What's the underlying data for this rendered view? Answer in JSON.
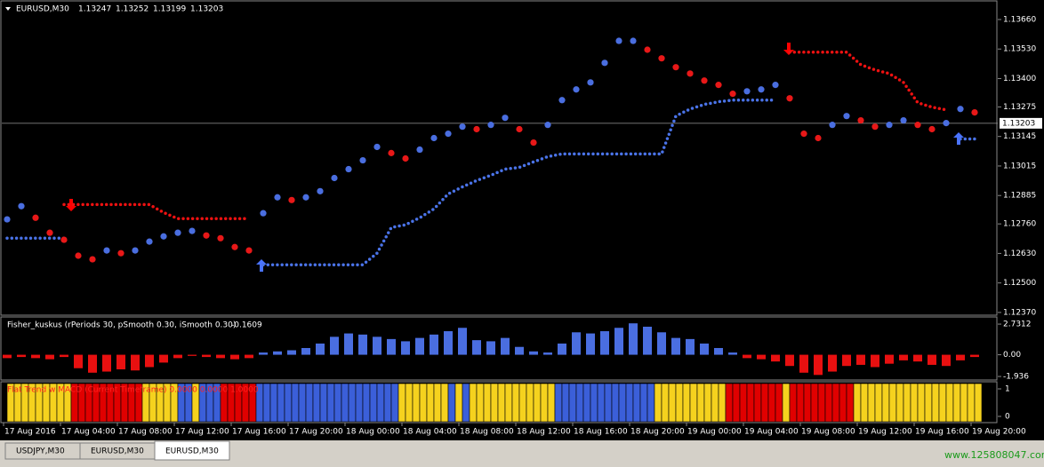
{
  "header": {
    "symbol": "EURUSD,M30",
    "ohlc": [
      1.13247,
      1.13252,
      1.13199,
      1.13203
    ]
  },
  "main_chart": {
    "type": "dot-price",
    "ylim": [
      1.12358,
      1.13742
    ],
    "yticks": [
      {
        "value": 1.1366,
        "label": "1.13660"
      },
      {
        "value": 1.1353,
        "label": "1.13530"
      },
      {
        "value": 1.134,
        "label": "1.13400"
      },
      1.13275,
      1.13145,
      1.13015,
      1.12885,
      {
        "value": 1.1276,
        "label": "1.12760"
      },
      {
        "value": 1.1263,
        "label": "1.12630"
      },
      {
        "value": 1.125,
        "label": "1.12500"
      },
      {
        "value": 1.1237,
        "label": "1.12370"
      }
    ],
    "current_price": 1.13203,
    "close": [
      1.1278,
      1.12838,
      1.12787,
      1.12721,
      1.1269,
      1.1262,
      1.12604,
      1.12643,
      1.12631,
      1.12643,
      1.12682,
      1.12705,
      1.12721,
      1.12729,
      1.12709,
      1.12697,
      1.12658,
      1.12643,
      1.12807,
      1.12877,
      1.12865,
      1.12877,
      1.12904,
      1.12962,
      1.13001,
      1.1304,
      1.13099,
      1.13072,
      1.13048,
      1.13087,
      1.13138,
      1.13157,
      1.13188,
      1.13177,
      1.13196,
      1.13227,
      1.13177,
      1.13118,
      1.13196,
      1.13305,
      1.13352,
      1.13383,
      1.13469,
      1.13566,
      1.13566,
      1.13527,
      1.13489,
      1.1345,
      1.13422,
      1.13391,
      1.13372,
      1.13333,
      1.13344,
      1.13352,
      1.13372,
      1.13313,
      1.13157,
      1.13138,
      1.13196,
      1.13235,
      1.13216,
      1.13188,
      1.13196,
      1.13216,
      1.13196,
      1.13177,
      1.13204,
      1.13266,
      1.13251
    ],
    "support": [
      1.12697,
      1.12697,
      1.12697,
      1.12697,
      1.12697,
      null,
      null,
      null,
      null,
      null,
      null,
      null,
      null,
      null,
      null,
      null,
      null,
      null,
      1.1258,
      1.1258,
      1.1258,
      1.1258,
      1.1258,
      1.1258,
      1.1258,
      1.1258,
      1.12631,
      1.12744,
      1.12756,
      1.12787,
      1.12826,
      1.12892,
      1.12923,
      1.12951,
      1.12974,
      1.13001,
      1.13009,
      1.13033,
      1.13056,
      1.13068,
      1.13068,
      1.13068,
      1.13068,
      1.13068,
      1.13068,
      1.13068,
      1.13068,
      1.13235,
      1.13266,
      1.13286,
      1.13298,
      1.13305,
      1.13305,
      1.13305,
      1.13305,
      null,
      null,
      null,
      null,
      null,
      null,
      null,
      null,
      null,
      null,
      null,
      null,
      1.13134,
      1.13134
    ],
    "resistance": [
      null,
      null,
      null,
      null,
      1.12845,
      1.12845,
      1.12845,
      1.12845,
      1.12845,
      1.12845,
      1.12845,
      1.1281,
      1.12783,
      1.12783,
      1.12783,
      1.12783,
      1.12783,
      1.12783,
      null,
      null,
      null,
      null,
      null,
      null,
      null,
      null,
      null,
      null,
      null,
      null,
      null,
      null,
      null,
      null,
      null,
      null,
      null,
      null,
      null,
      null,
      null,
      null,
      null,
      null,
      null,
      null,
      null,
      null,
      null,
      null,
      null,
      null,
      null,
      null,
      null,
      1.13516,
      1.13516,
      1.13516,
      1.13516,
      1.13516,
      1.13461,
      1.13438,
      1.13422,
      1.13383,
      1.13294,
      1.13274,
      1.13262,
      null,
      null
    ]
  },
  "fisher": {
    "type": "histogram",
    "label": "Fisher_kuskus (rPeriods 30, pSmooth 0.30, iSmooth 0.30)",
    "current": -0.1609,
    "ylim": [
      -2.25,
      3.29
    ],
    "yticks": [
      2.7312,
      {
        "value": 0,
        "label": "0.00"
      },
      -1.936
    ],
    "values": [
      -0.3,
      -0.2,
      -0.3,
      -0.4,
      -0.2,
      -1.2,
      -1.6,
      -1.5,
      -1.3,
      -1.4,
      -1.1,
      -0.7,
      -0.3,
      -0.1,
      -0.2,
      -0.3,
      -0.4,
      -0.3,
      0.2,
      0.3,
      0.4,
      0.6,
      1.0,
      1.6,
      1.9,
      1.8,
      1.6,
      1.4,
      1.2,
      1.5,
      1.8,
      2.1,
      2.4,
      1.3,
      1.2,
      1.5,
      0.7,
      0.3,
      0.2,
      1.0,
      2.0,
      1.9,
      2.1,
      2.4,
      2.8,
      2.5,
      2.0,
      1.5,
      1.4,
      1.0,
      0.6,
      0.2,
      -0.3,
      -0.4,
      -0.6,
      -1.0,
      -1.6,
      -1.8,
      -1.5,
      -1.0,
      -0.9,
      -1.1,
      -0.8,
      -0.5,
      -0.6,
      -0.9,
      -1.0,
      -0.5,
      -0.2
    ]
  },
  "trend": {
    "type": "blocks",
    "label": "Flat Trend w MACD (Current Timeframe) 0.0000 0.0000 1.0000",
    "yticks": [
      1,
      0
    ],
    "segments": [
      {
        "color": "#f5d21e",
        "bars": 9
      },
      {
        "color": "#e00000",
        "bars": 10
      },
      {
        "color": "#f5d21e",
        "bars": 5
      },
      {
        "color": "#3b5fd9",
        "bars": 2
      },
      {
        "color": "#f5d21e",
        "bars": 1
      },
      {
        "color": "#3b5fd9",
        "bars": 3
      },
      {
        "color": "#e00000",
        "bars": 5
      },
      {
        "color": "#3b5fd9",
        "bars": 20
      },
      {
        "color": "#f5d21e",
        "bars": 7
      },
      {
        "color": "#3b5fd9",
        "bars": 1
      },
      {
        "color": "#f5d21e",
        "bars": 1
      },
      {
        "color": "#3b5fd9",
        "bars": 1
      },
      {
        "color": "#f5d21e",
        "bars": 12
      },
      {
        "color": "#3b5fd9",
        "bars": 14
      },
      {
        "color": "#f5d21e",
        "bars": 10
      },
      {
        "color": "#e00000",
        "bars": 8
      },
      {
        "color": "#f5d21e",
        "bars": 1
      },
      {
        "color": "#e00000",
        "bars": 9
      },
      {
        "color": "#f5d21e",
        "bars": 18
      }
    ]
  },
  "time_labels": [
    "17 Aug 2016",
    "17 Aug 04:00",
    "17 Aug 08:00",
    "17 Aug 12:00",
    "17 Aug 16:00",
    "17 Aug 20:00",
    "18 Aug 00:00",
    "18 Aug 04:00",
    "18 Aug 08:00",
    "18 Aug 12:00",
    "18 Aug 16:00",
    "18 Aug 20:00",
    "19 Aug 00:00",
    "19 Aug 04:00",
    "19 Aug 08:00",
    "19 Aug 12:00",
    "19 Aug 16:00",
    "19 Aug 20:00"
  ],
  "tabs": [
    "USDJPY,M30",
    "EURUSD,M30",
    "EURUSD,M30"
  ],
  "watermark": "www.125808047.com"
}
